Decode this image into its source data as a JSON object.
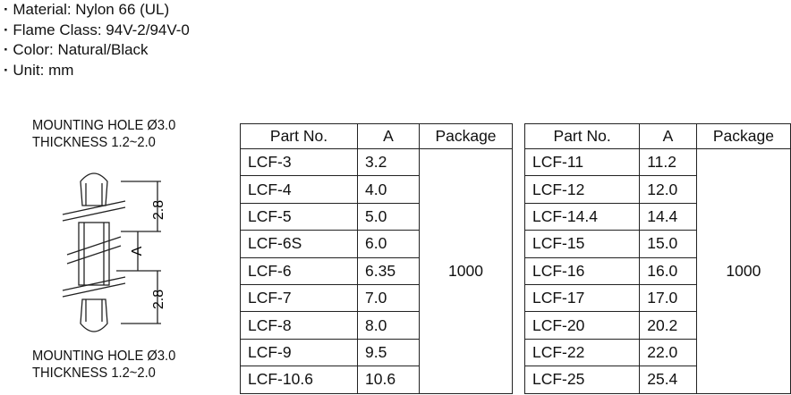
{
  "specs": [
    "Material: Nylon 66 (UL)",
    "Flame Class: 94V-2/94V-0",
    "Color: Natural/Black",
    "Unit: mm"
  ],
  "drawing": {
    "top_label": [
      "MOUNTING HOLE Ø3.0",
      "THICKNESS 1.2~2.0"
    ],
    "bottom_label": [
      "MOUNTING HOLE Ø3.0",
      "THICKNESS 1.2~2.0"
    ],
    "dim_upper": "2.8",
    "dim_middle": "A",
    "dim_lower": "2.8"
  },
  "tables": [
    {
      "headers": [
        "Part No.",
        "A",
        "Package"
      ],
      "package": "1000",
      "rows": [
        [
          "LCF-3",
          "3.2"
        ],
        [
          "LCF-4",
          "4.0"
        ],
        [
          "LCF-5",
          "5.0"
        ],
        [
          "LCF-6S",
          "6.0"
        ],
        [
          "LCF-6",
          "6.35"
        ],
        [
          "LCF-7",
          "7.0"
        ],
        [
          "LCF-8",
          "8.0"
        ],
        [
          "LCF-9",
          "9.5"
        ],
        [
          "LCF-10.6",
          "10.6"
        ]
      ]
    },
    {
      "headers": [
        "Part No.",
        "A",
        "Package"
      ],
      "package": "1000",
      "rows": [
        [
          "LCF-11",
          "11.2"
        ],
        [
          "LCF-12",
          "12.0"
        ],
        [
          "LCF-14.4",
          "14.4"
        ],
        [
          "LCF-15",
          "15.0"
        ],
        [
          "LCF-16",
          "16.0"
        ],
        [
          "LCF-17",
          "17.0"
        ],
        [
          "LCF-20",
          "20.2"
        ],
        [
          "LCF-22",
          "22.0"
        ],
        [
          "LCF-25",
          "25.4"
        ]
      ]
    }
  ]
}
